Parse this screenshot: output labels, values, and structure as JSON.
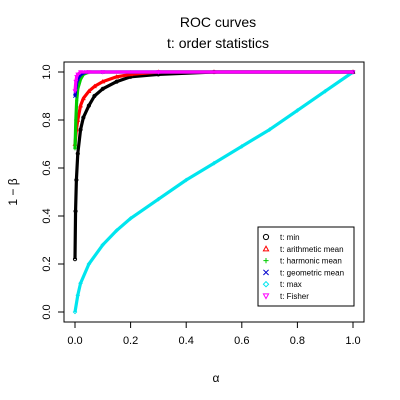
{
  "chart_data": {
    "type": "line",
    "title": "ROC curves",
    "subtitle": "t: order statistics",
    "xlabel": "α",
    "ylabel": "1 − β",
    "xlim": [
      0,
      1
    ],
    "ylim": [
      0,
      1
    ],
    "x_ticks": [
      "0.0",
      "0.2",
      "0.4",
      "0.6",
      "0.8",
      "1.0"
    ],
    "y_ticks": [
      "0.0",
      "0.2",
      "0.4",
      "0.6",
      "0.8",
      "1.0"
    ],
    "grid": false,
    "legend_position": "bottom-right",
    "series": [
      {
        "name": "t: min",
        "color": "#000000",
        "marker": "circle",
        "x": [
          0,
          0.002,
          0.005,
          0.01,
          0.02,
          0.03,
          0.05,
          0.07,
          0.1,
          0.15,
          0.2,
          0.3,
          0.5,
          1.0
        ],
        "y": [
          0.22,
          0.42,
          0.55,
          0.66,
          0.76,
          0.81,
          0.86,
          0.9,
          0.93,
          0.96,
          0.98,
          0.99,
          1.0,
          1.0
        ]
      },
      {
        "name": "t: arithmetic mean",
        "color": "#ff0000",
        "marker": "triangle",
        "x": [
          0,
          0.005,
          0.01,
          0.02,
          0.03,
          0.05,
          0.07,
          0.1,
          0.15,
          0.2,
          0.3,
          0.5,
          1.0
        ],
        "y": [
          0.7,
          0.76,
          0.8,
          0.86,
          0.89,
          0.92,
          0.94,
          0.96,
          0.98,
          0.99,
          1.0,
          1.0,
          1.0
        ]
      },
      {
        "name": "t: harmonic mean",
        "color": "#00cc00",
        "marker": "plus",
        "x": [
          0,
          0.003,
          0.006,
          0.01,
          0.02,
          0.03,
          0.05,
          0.1,
          0.2,
          1.0
        ],
        "y": [
          0.68,
          0.8,
          0.88,
          0.93,
          0.97,
          0.99,
          1.0,
          1.0,
          1.0,
          1.0
        ]
      },
      {
        "name": "t: geometric mean",
        "color": "#0000cc",
        "marker": "x",
        "x": [
          0,
          0.005,
          0.01,
          0.02,
          0.04,
          0.1,
          0.3,
          1.0
        ],
        "y": [
          0.9,
          0.95,
          0.97,
          0.99,
          1.0,
          1.0,
          1.0,
          1.0
        ]
      },
      {
        "name": "t: max",
        "color": "#00e5ee",
        "marker": "diamond",
        "x": [
          0,
          0.01,
          0.02,
          0.05,
          0.1,
          0.15,
          0.2,
          0.3,
          0.4,
          0.5,
          0.6,
          0.7,
          0.8,
          0.9,
          1.0
        ],
        "y": [
          0.0,
          0.07,
          0.12,
          0.2,
          0.28,
          0.34,
          0.39,
          0.47,
          0.55,
          0.62,
          0.69,
          0.76,
          0.84,
          0.92,
          1.0
        ]
      },
      {
        "name": "t: Fisher",
        "color": "#ff00ff",
        "marker": "triangle-down",
        "x": [
          0,
          0.003,
          0.006,
          0.01,
          0.02,
          0.05,
          0.1,
          0.3,
          1.0
        ],
        "y": [
          0.92,
          0.96,
          0.98,
          0.99,
          1.0,
          1.0,
          1.0,
          1.0,
          1.0
        ]
      }
    ]
  }
}
